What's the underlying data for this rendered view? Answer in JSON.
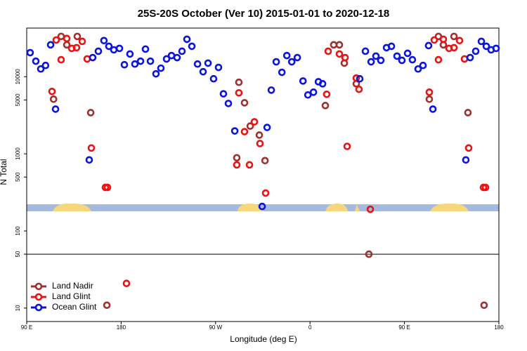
{
  "chart_data": {
    "type": "scatter",
    "title": "25S-20S October (Ver 10)   2015-01-01 to 2020-12-18",
    "x_label": "Longitude (deg E)",
    "y_label": "N Total",
    "xlim": [
      90,
      540
    ],
    "xticks": [
      {
        "value": 90,
        "label": "90 E"
      },
      180,
      {
        "value": 270,
        "label": "90 W"
      },
      {
        "value": 360,
        "label": "0"
      },
      {
        "value": 450,
        "label": "90 E"
      },
      {
        "value": 540,
        "label": "180"
      }
    ],
    "ylim": [
      6.7,
      42700
    ],
    "ylog": true,
    "yticks": [
      10,
      50,
      100,
      500,
      1000,
      5000,
      10000
    ],
    "hline": 50,
    "legend": "lower-left",
    "series": [
      {
        "name": "Land Nadir",
        "color": "#a0302e",
        "x": [
          115.6,
          122.8,
          128.2,
          138.2,
          151.0,
          166.4,
          290.2,
          292.2,
          297.6,
          303.0,
          311.7,
          317.1,
          374.6,
          382.6,
          388.0,
          392.7,
          404.1,
          416.1,
          473.7,
          482.4,
          487.1,
          497.2,
          510.5,
          525.9
        ],
        "values": [
          5110,
          33300,
          25900,
          33300,
          3420,
          10.9,
          889,
          8470,
          4590,
          2290,
          1750,
          817,
          4230,
          25900,
          25900,
          15000,
          8100,
          50,
          5110,
          33300,
          25900,
          33300,
          3420,
          10.9
        ]
      },
      {
        "name": "Land Glint",
        "color": "#ee1111",
        "x": [
          114.1,
          118.1,
          122.8,
          128.2,
          132.9,
          137.5,
          142.9,
          147.6,
          151.6,
          165.0,
          167.0,
          185.1,
          290.2,
          292.2,
          297.6,
          302.3,
          307.0,
          312.3,
          317.7,
          375.9,
          377.3,
          388.0,
          393.4,
          395.4,
          404.1,
          406.7,
          417.5,
          473.7,
          478.4,
          482.4,
          487.1,
          492.5,
          497.2,
          502.5,
          507.2,
          511.2,
          525.3,
          527.3
        ],
        "values": [
          6440,
          29900,
          16600,
          31300,
          23300,
          23800,
          28700,
          17000,
          1190,
          367,
          367,
          20.9,
          720,
          6170,
          1940,
          720,
          2600,
          1360,
          310,
          5920,
          21400,
          19700,
          17700,
          1250,
          9610,
          6860,
          191,
          6300,
          29900,
          16600,
          30600,
          23300,
          23800,
          29400,
          17000,
          1190,
          367,
          367
        ]
      },
      {
        "name": "Ocean Glint",
        "color": "#0a14e0",
        "x": [
          93.3,
          98.7,
          103.4,
          108.0,
          112.8,
          117.5,
          149.6,
          152.9,
          158.3,
          163.6,
          168.3,
          173.0,
          178.4,
          183.1,
          188.4,
          193.1,
          198.5,
          203.2,
          207.9,
          213.2,
          217.9,
          223.3,
          228.0,
          233.3,
          238.0,
          242.7,
          247.4,
          252.8,
          258.1,
          262.8,
          268.1,
          272.8,
          277.5,
          282.2,
          288.3,
          314.4,
          319.1,
          323.1,
          327.8,
          333.2,
          337.9,
          342.6,
          347.9,
          353.3,
          358.0,
          363.3,
          368.0,
          372.0,
          407.4,
          412.8,
          418.2,
          422.8,
          427.5,
          432.9,
          437.6,
          442.9,
          447.6,
          453.0,
          457.6,
          463.0,
          467.7,
          473.0,
          477.1,
          508.5,
          512.6,
          517.9,
          523.3,
          528.0,
          532.6,
          537.3
        ],
        "values": [
          20500,
          15900,
          12600,
          14000,
          25900,
          3800,
          834,
          17700,
          21400,
          29400,
          24800,
          22300,
          23300,
          14300,
          19700,
          14600,
          15900,
          22800,
          15900,
          10900,
          12900,
          17000,
          18800,
          17700,
          21400,
          30600,
          24800,
          14600,
          11600,
          15000,
          9400,
          13200,
          6000,
          4500,
          1980,
          208,
          2200,
          6700,
          15600,
          11400,
          18800,
          15600,
          17700,
          8800,
          5800,
          6300,
          8600,
          8100,
          9400,
          21400,
          15600,
          18500,
          16300,
          23800,
          24800,
          18500,
          16300,
          20100,
          16600,
          12600,
          14000,
          25300,
          3800,
          834,
          17700,
          21400,
          28700,
          24800,
          22300,
          23300
        ]
      }
    ]
  }
}
